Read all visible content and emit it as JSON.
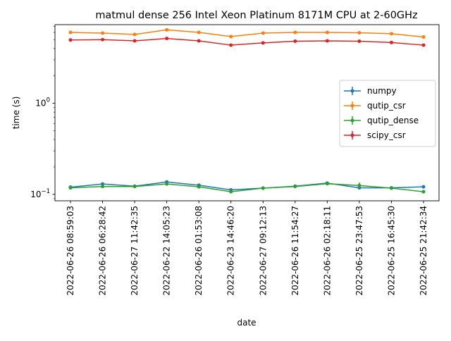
{
  "chart_data": {
    "type": "line",
    "title": "matmul dense 256 Intel Xeon Platinum 8171M CPU at 2-60GHz",
    "xlabel": "date",
    "ylabel": "time (s)",
    "yscale": "log",
    "ylim": [
      0.085,
      7.3
    ],
    "yticks": [
      {
        "value": 0.1,
        "base": "10",
        "exp": "−1"
      },
      {
        "value": 1,
        "base": "10",
        "exp": "0"
      }
    ],
    "categories": [
      "2022-06-26 08:59:03",
      "2022-06-26 06:28:42",
      "2022-06-27 11:42:35",
      "2022-06-22 14:05:23",
      "2022-06-26 01:53:08",
      "2022-06-23 14:46:20",
      "2022-06-27 09:12:13",
      "2022-06-26 11:54:27",
      "2022-06-26 02:18:11",
      "2022-06-25 23:47:53",
      "2022-06-25 16:45:30",
      "2022-06-25 21:42:34"
    ],
    "series": [
      {
        "name": "numpy",
        "color": "#1f77b4",
        "values": [
          0.12,
          0.13,
          0.123,
          0.137,
          0.126,
          0.112,
          0.117,
          0.123,
          0.133,
          0.118,
          0.118,
          0.121
        ],
        "errors": [
          0.002,
          0.002,
          0.002,
          0.003,
          0.002,
          0.002,
          0.002,
          0.002,
          0.003,
          0.003,
          0.002,
          0.002
        ]
      },
      {
        "name": "qutip_csr",
        "color": "#ff7f0e",
        "values": [
          6.0,
          5.9,
          5.7,
          6.4,
          6.0,
          5.4,
          5.9,
          6.0,
          6.0,
          5.95,
          5.8,
          5.35
        ],
        "errors": [
          0.05,
          0.05,
          0.05,
          0.06,
          0.05,
          0.05,
          0.05,
          0.05,
          0.05,
          0.05,
          0.05,
          0.05
        ]
      },
      {
        "name": "qutip_dense",
        "color": "#2ca02c",
        "values": [
          0.118,
          0.122,
          0.122,
          0.13,
          0.121,
          0.107,
          0.117,
          0.122,
          0.131,
          0.125,
          0.117,
          0.107
        ],
        "errors": [
          0.002,
          0.002,
          0.002,
          0.003,
          0.002,
          0.002,
          0.002,
          0.002,
          0.003,
          0.01,
          0.002,
          0.002
        ]
      },
      {
        "name": "scipy_csr",
        "color": "#d62728",
        "values": [
          4.95,
          5.0,
          4.85,
          5.15,
          4.85,
          4.35,
          4.6,
          4.8,
          4.85,
          4.8,
          4.65,
          4.35
        ],
        "errors": [
          0.04,
          0.04,
          0.04,
          0.05,
          0.04,
          0.04,
          0.04,
          0.04,
          0.04,
          0.04,
          0.04,
          0.04
        ]
      }
    ],
    "legend": "center-right",
    "grid": false
  }
}
